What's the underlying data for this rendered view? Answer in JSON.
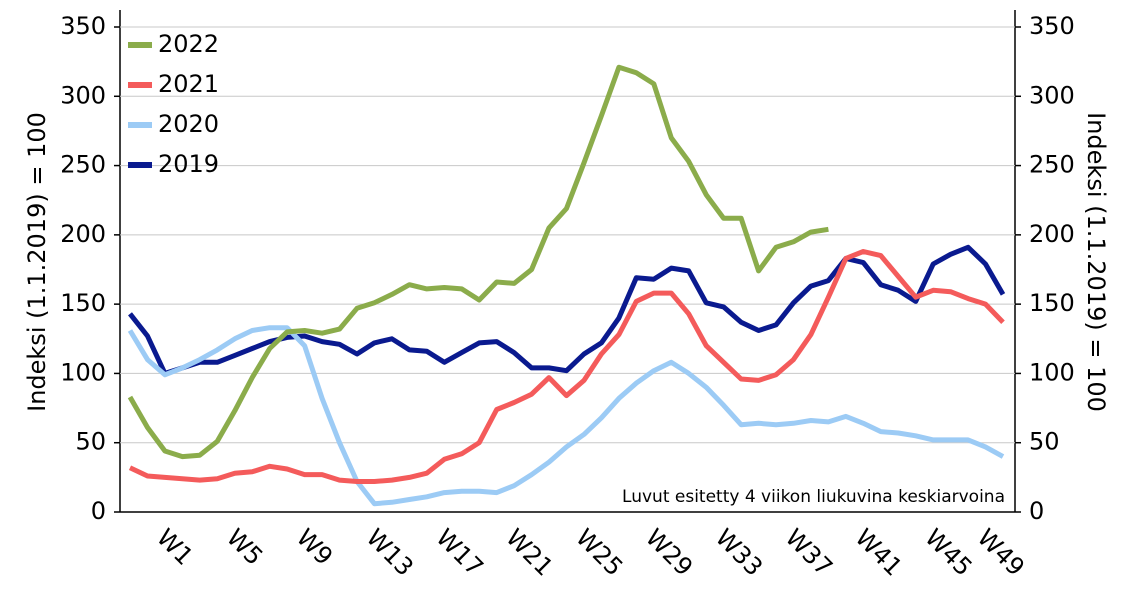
{
  "chart_data": {
    "type": "line",
    "ylabel": "Indeksi (1.1.2019) = 100",
    "y2label": "Indeksi (1.1.2019) = 100",
    "annotation": "Luvut esitetty 4 viikon liukuvina keskiarvoina",
    "categories": [
      null,
      null,
      null,
      "W1",
      null,
      null,
      null,
      "W5",
      null,
      null,
      null,
      "W9",
      null,
      null,
      null,
      "W13",
      null,
      null,
      null,
      "W17",
      null,
      null,
      null,
      "W21",
      null,
      null,
      null,
      "W25",
      null,
      null,
      null,
      "W29",
      null,
      null,
      null,
      "W33",
      null,
      null,
      null,
      "W37",
      null,
      null,
      null,
      "W41",
      null,
      null,
      null,
      "W45",
      null,
      null,
      "W49"
    ],
    "ylim": [
      0,
      350
    ],
    "yticks": [
      0,
      50,
      100,
      150,
      200,
      250,
      300,
      350
    ],
    "y2lim": [
      0,
      350
    ],
    "y2ticks": [
      0,
      50,
      100,
      150,
      200,
      250,
      300,
      350
    ],
    "grid": true,
    "legend": "upper left",
    "series": [
      {
        "name": "2022",
        "color": "#8bac4b",
        "values": [
          83,
          61,
          44,
          40,
          41,
          51,
          73,
          97,
          118,
          130,
          131,
          129,
          132,
          147,
          151,
          157,
          164,
          161,
          162,
          161,
          153,
          166,
          165,
          175,
          205,
          219,
          252,
          286,
          321,
          317,
          309,
          270,
          253,
          229,
          212,
          212,
          174,
          191,
          195,
          202,
          204,
          null,
          null,
          null,
          null,
          null,
          null,
          null,
          null,
          null,
          null
        ]
      },
      {
        "name": "2021",
        "color": "#f45b5b",
        "values": [
          32,
          26,
          25,
          24,
          23,
          24,
          28,
          29,
          33,
          31,
          27,
          27,
          23,
          22,
          22,
          23,
          25,
          28,
          38,
          42,
          50,
          74,
          79,
          85,
          97,
          84,
          95,
          114,
          128,
          152,
          158,
          158,
          143,
          120,
          108,
          96,
          95,
          99,
          110,
          128,
          155,
          183,
          188,
          185,
          170,
          155,
          160,
          159,
          154,
          150,
          137
        ]
      },
      {
        "name": "2020",
        "color": "#9ccbf5",
        "values": [
          131,
          110,
          99,
          104,
          110,
          117,
          125,
          131,
          133,
          133,
          120,
          82,
          50,
          22,
          6,
          7,
          9,
          11,
          14,
          15,
          15,
          14,
          19,
          27,
          36,
          47,
          56,
          68,
          82,
          93,
          102,
          108,
          100,
          90,
          77,
          63,
          64,
          63,
          64,
          66,
          65,
          69,
          64,
          58,
          57,
          55,
          52,
          52,
          52,
          47,
          40
        ]
      },
      {
        "name": "2019",
        "color": "#0a1a8f",
        "values": [
          143,
          127,
          100,
          104,
          108,
          108,
          113,
          118,
          123,
          126,
          127,
          123,
          121,
          114,
          122,
          125,
          117,
          116,
          108,
          115,
          122,
          123,
          115,
          104,
          104,
          102,
          114,
          122,
          140,
          169,
          168,
          176,
          174,
          151,
          148,
          137,
          131,
          135,
          151,
          163,
          167,
          183,
          180,
          164,
          160,
          152,
          179,
          186,
          191,
          179,
          157
        ]
      }
    ]
  }
}
